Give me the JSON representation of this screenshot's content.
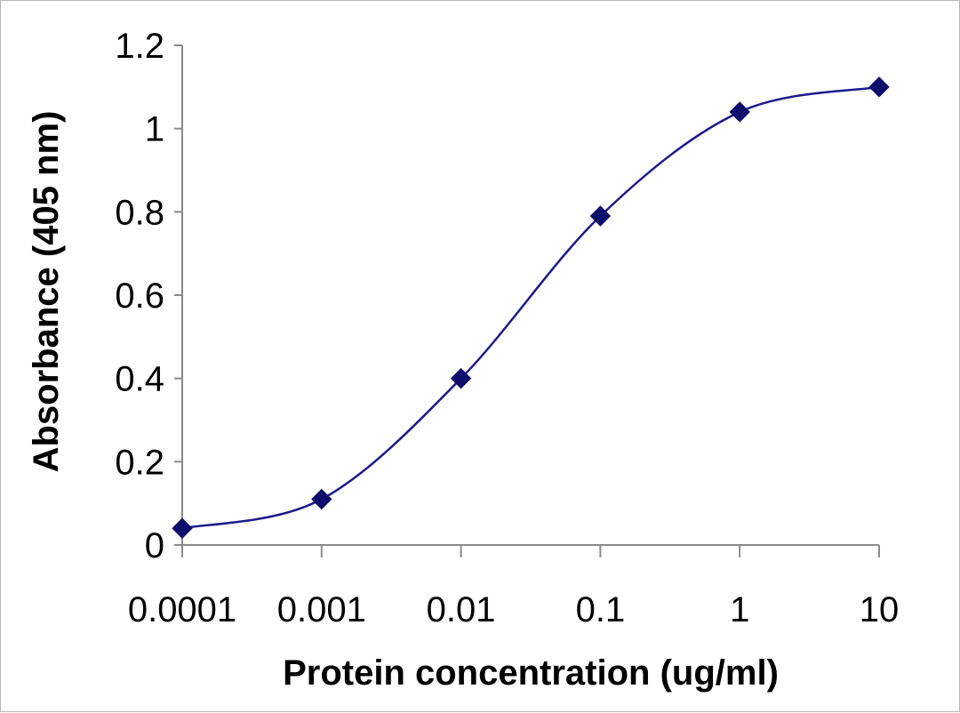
{
  "chart_data": {
    "type": "line",
    "title": "",
    "xlabel": "Protein concentration (ug/ml)",
    "ylabel": "Absorbance (405 nm)",
    "x_scale": "log",
    "x": [
      0.0001,
      0.001,
      0.01,
      0.1,
      1,
      10
    ],
    "x_tick_labels": [
      "0.0001",
      "0.001",
      "0.01",
      "0.1",
      "1",
      "10"
    ],
    "y_tick_labels": [
      "0",
      "0.2",
      "0.4",
      "0.6",
      "0.8",
      "1",
      "1.2"
    ],
    "ylim": [
      0,
      1.2
    ],
    "series": [
      {
        "values": [
          0.04,
          0.11,
          0.4,
          0.79,
          1.04,
          1.1
        ],
        "color": "#1a1a8c",
        "marker": "diamond",
        "smooth": true
      }
    ],
    "grid": false,
    "legend": "none"
  }
}
